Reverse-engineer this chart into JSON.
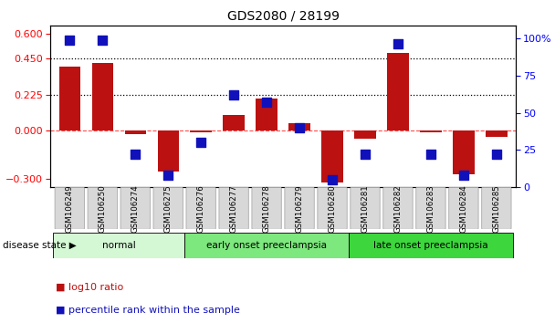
{
  "title": "GDS2080 / 28199",
  "samples": [
    "GSM106249",
    "GSM106250",
    "GSM106274",
    "GSM106275",
    "GSM106276",
    "GSM106277",
    "GSM106278",
    "GSM106279",
    "GSM106280",
    "GSM106281",
    "GSM106282",
    "GSM106283",
    "GSM106284",
    "GSM106285"
  ],
  "log10_ratio": [
    0.4,
    0.42,
    -0.02,
    -0.25,
    -0.01,
    0.1,
    0.2,
    0.05,
    -0.32,
    -0.05,
    0.48,
    -0.01,
    -0.27,
    -0.04
  ],
  "percentile_rank": [
    99,
    99,
    22,
    8,
    30,
    62,
    57,
    40,
    5,
    22,
    96,
    22,
    8,
    22
  ],
  "groups": [
    {
      "label": "normal",
      "start": 0,
      "end": 3,
      "color": "#d4f7d4"
    },
    {
      "label": "early onset preeclampsia",
      "start": 4,
      "end": 8,
      "color": "#7de87d"
    },
    {
      "label": "late onset preeclampsia",
      "start": 9,
      "end": 13,
      "color": "#3dd63d"
    }
  ],
  "bar_color_red": "#bb1111",
  "bar_color_blue": "#1111bb",
  "ylim_left": [
    -0.35,
    0.65
  ],
  "ylim_right": [
    0,
    108.33
  ],
  "yticks_left": [
    -0.3,
    0.0,
    0.225,
    0.45,
    0.6
  ],
  "yticks_right": [
    0,
    25,
    50,
    75,
    100
  ],
  "hlines": [
    0.225,
    0.45
  ],
  "hline_zero": 0.0,
  "legend_items": [
    "log10 ratio",
    "percentile rank within the sample"
  ],
  "disease_label": "disease state",
  "background_color": "#ffffff",
  "bar_width": 0.65,
  "blue_marker_size": 50
}
